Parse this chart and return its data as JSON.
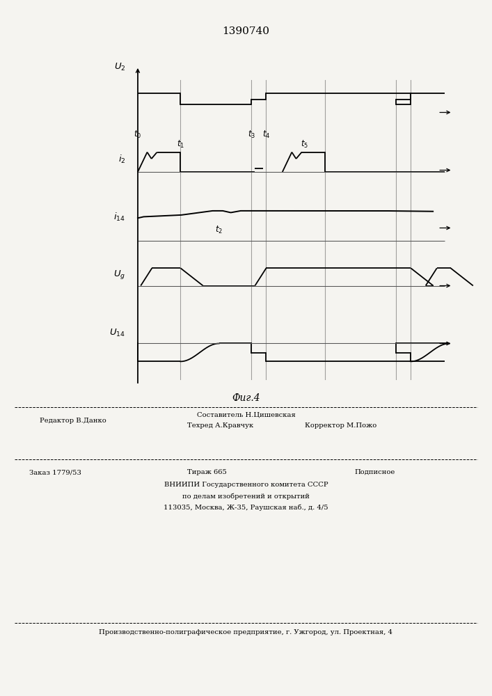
{
  "title": "1390740",
  "fig_label": "Фиг.4",
  "bg": "#f5f4f0",
  "lc": "#000000",
  "bottom_text": {
    "t1": "Составитель Н.Цишевская",
    "t2": "Редактор В.Данко",
    "t3": "Техред А.Кравчук",
    "t4": "Корректор М.Пожо",
    "t5": "Заказ 1779/53",
    "t6": "Тираж 665",
    "t7": "Подписное",
    "t8": "ВНИИПИ Государственного комитета СССР",
    "t9": "по делам изобретений и открытий",
    "t10": "113035, Москва, Ж-35, Раушская наб., д. 4/5",
    "t11": "Производственно-полиграфическое предприятие, г. Ужгород, ул. Проектная, 4"
  }
}
